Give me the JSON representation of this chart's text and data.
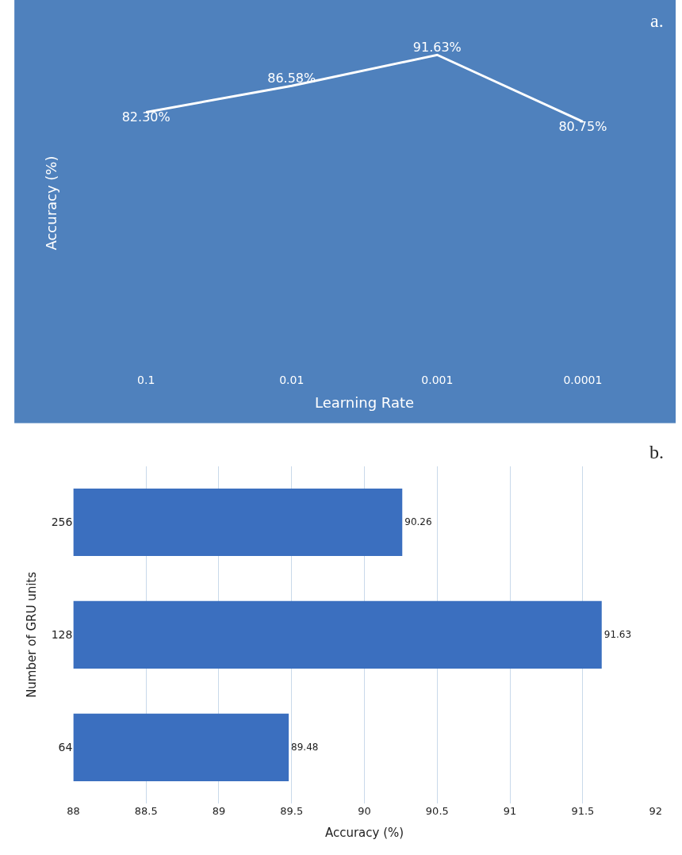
{
  "chart_data": [
    {
      "type": "line",
      "categories": [
        "0.1",
        "0.01",
        "0.001",
        "0.0001"
      ],
      "values": [
        82.3,
        86.58,
        91.63,
        80.75
      ],
      "value_labels": [
        "82.30%",
        "86.58%",
        "91.63%",
        "80.75%"
      ],
      "color": "#ffffff",
      "xlabel": "Learning Rate",
      "ylabel": "Accuracy (%)",
      "annotations": [
        "a."
      ],
      "marker": "none",
      "grid": false,
      "tick_labels": "x"
    },
    {
      "type": "bar",
      "orientation": "horizontal",
      "categories": [
        "256",
        "128",
        "64"
      ],
      "values": [
        90.26,
        91.63,
        89.48
      ],
      "color": "#3b6fbf",
      "xlabel": "Accuracy (%)",
      "ylabel": "Number of GRU units",
      "xlim": [
        88,
        92
      ],
      "xticks": [
        88,
        88.5,
        89,
        89.5,
        90,
        90.5,
        91,
        91.5,
        92
      ],
      "grid": "x",
      "data_labels": true,
      "annotations": [
        "b."
      ]
    }
  ]
}
